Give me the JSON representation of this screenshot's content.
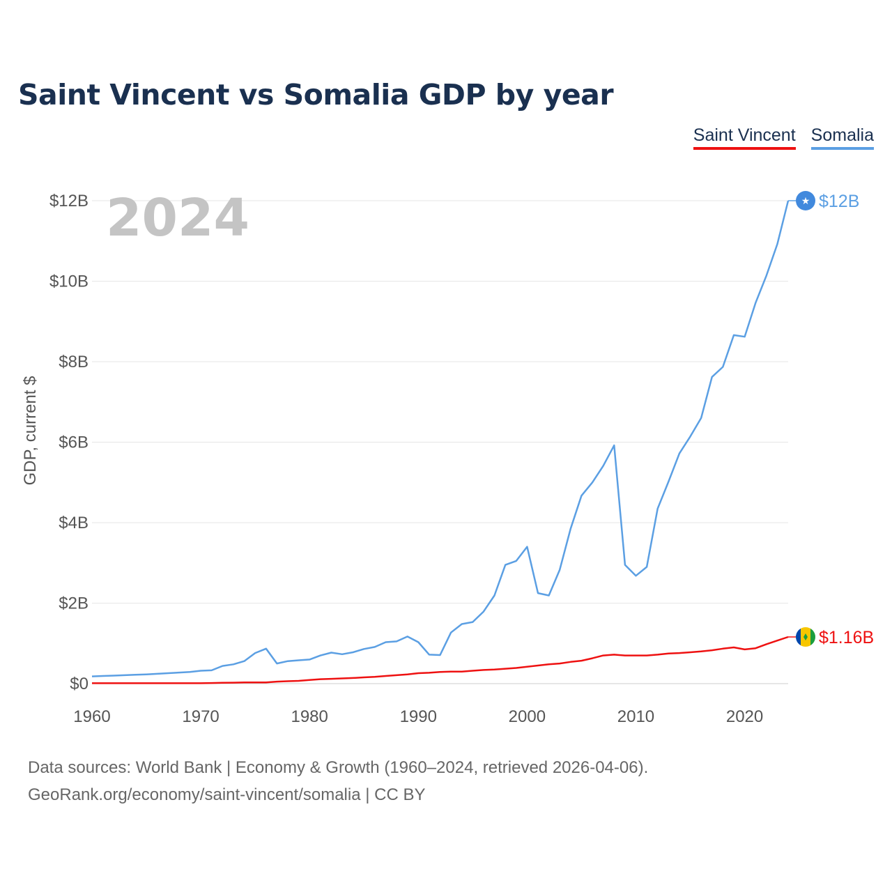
{
  "chart_data": {
    "type": "line",
    "title": "Saint Vincent vs Somalia GDP by year",
    "xlabel": "",
    "ylabel": "GDP, current $",
    "xlim": [
      1960,
      2024
    ],
    "ylim": [
      0,
      12
    ],
    "y_unit": "billions of current US$",
    "x_ticks": [
      1960,
      1970,
      1980,
      1990,
      2000,
      2010,
      2020
    ],
    "y_ticks": [
      0,
      2,
      4,
      6,
      8,
      10,
      12
    ],
    "y_tick_labels": [
      "$0",
      "$2B",
      "$4B",
      "$6B",
      "$8B",
      "$10B",
      "$12B"
    ],
    "year_label": "2024",
    "legend_position": "top-right",
    "x": [
      1960,
      1961,
      1962,
      1963,
      1964,
      1965,
      1966,
      1967,
      1968,
      1969,
      1970,
      1971,
      1972,
      1973,
      1974,
      1975,
      1976,
      1977,
      1978,
      1979,
      1980,
      1981,
      1982,
      1983,
      1984,
      1985,
      1986,
      1987,
      1988,
      1989,
      1990,
      1991,
      1992,
      1993,
      1994,
      1995,
      1996,
      1997,
      1998,
      1999,
      2000,
      2001,
      2002,
      2003,
      2004,
      2005,
      2006,
      2007,
      2008,
      2009,
      2010,
      2011,
      2012,
      2013,
      2014,
      2015,
      2016,
      2017,
      2018,
      2019,
      2020,
      2021,
      2022,
      2023,
      2024
    ],
    "series": [
      {
        "name": "Saint Vincent",
        "color": "#ee1111",
        "end_label": "$1.16B",
        "flag": "saint-vincent-flag",
        "values": [
          0.01,
          0.01,
          0.01,
          0.01,
          0.01,
          0.01,
          0.01,
          0.01,
          0.01,
          0.01,
          0.01,
          0.015,
          0.02,
          0.025,
          0.03,
          0.03,
          0.03,
          0.05,
          0.06,
          0.07,
          0.09,
          0.11,
          0.12,
          0.13,
          0.14,
          0.155,
          0.17,
          0.19,
          0.21,
          0.23,
          0.26,
          0.27,
          0.29,
          0.3,
          0.3,
          0.32,
          0.34,
          0.35,
          0.37,
          0.39,
          0.42,
          0.45,
          0.48,
          0.5,
          0.54,
          0.57,
          0.63,
          0.7,
          0.72,
          0.7,
          0.7,
          0.7,
          0.72,
          0.75,
          0.76,
          0.78,
          0.8,
          0.83,
          0.87,
          0.9,
          0.85,
          0.88,
          0.98,
          1.07,
          1.16
        ]
      },
      {
        "name": "Somalia",
        "color": "#5b9fe3",
        "end_label": "$12B",
        "flag": "somalia-flag",
        "values": [
          0.18,
          0.19,
          0.2,
          0.21,
          0.22,
          0.23,
          0.245,
          0.26,
          0.275,
          0.29,
          0.32,
          0.33,
          0.44,
          0.48,
          0.56,
          0.76,
          0.87,
          0.5,
          0.56,
          0.58,
          0.6,
          0.7,
          0.77,
          0.73,
          0.78,
          0.86,
          0.91,
          1.03,
          1.05,
          1.17,
          1.03,
          0.72,
          0.71,
          1.27,
          1.48,
          1.53,
          1.79,
          2.19,
          2.95,
          3.05,
          3.4,
          2.25,
          2.19,
          2.83,
          3.85,
          4.67,
          5.0,
          5.41,
          5.92,
          2.95,
          2.68,
          2.9,
          4.35,
          5.02,
          5.72,
          6.14,
          6.6,
          7.62,
          7.87,
          8.66,
          8.62,
          9.46,
          10.14,
          10.92,
          12.0
        ]
      }
    ]
  },
  "legend": {
    "items": [
      "Saint Vincent",
      "Somalia"
    ]
  },
  "source": {
    "line1": "Data sources: World Bank | Economy & Growth (1960–2024, retrieved 2026-04-06).",
    "line2": "GeoRank.org/economy/saint-vincent/somalia | CC BY"
  }
}
